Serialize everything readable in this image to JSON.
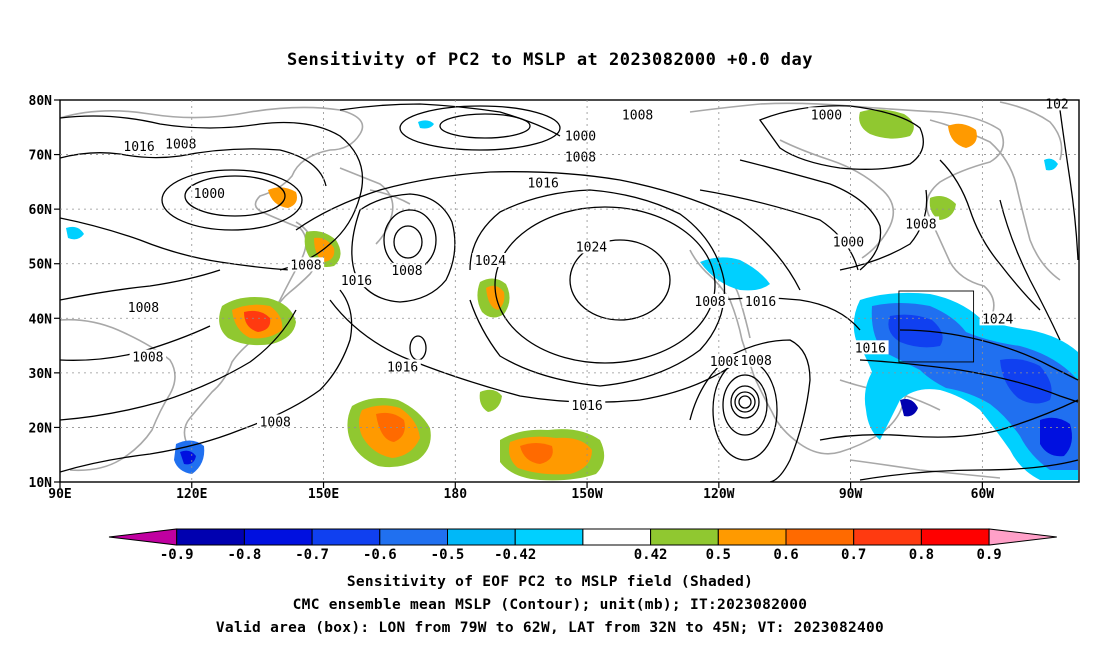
{
  "title": "Sensitivity of PC2 to MSLP at 2023082000 +0.0 day",
  "axes": {
    "lat_labels": [
      "80N",
      "70N",
      "60N",
      "50N",
      "40N",
      "30N",
      "20N",
      "10N"
    ],
    "lon_labels": [
      "90E",
      "120E",
      "150E",
      "180",
      "150W",
      "120W",
      "90W",
      "60W"
    ]
  },
  "contour_labels": [
    {
      "text": "1000",
      "lon": -151.5,
      "lat": 73.3
    },
    {
      "text": "1008",
      "lon": -138.5,
      "lat": 77.2
    },
    {
      "text": "1000",
      "lon": -95.5,
      "lat": 77.2
    },
    {
      "text": "102",
      "lon": -43.0,
      "lat": 79.2
    },
    {
      "text": "1016",
      "lon": 108.0,
      "lat": 71.4
    },
    {
      "text": "1008",
      "lon": 117.5,
      "lat": 71.8
    },
    {
      "text": "1008",
      "lon": -151.5,
      "lat": 69.5
    },
    {
      "text": "1000",
      "lon": 124.0,
      "lat": 62.8
    },
    {
      "text": "1016",
      "lon": -160.0,
      "lat": 64.7
    },
    {
      "text": "1024",
      "lon": -149.0,
      "lat": 53.0
    },
    {
      "text": "1024",
      "lon": -172.0,
      "lat": 50.5
    },
    {
      "text": "1008",
      "lon": 146.0,
      "lat": 49.7
    },
    {
      "text": "1016",
      "lon": 157.5,
      "lat": 46.8
    },
    {
      "text": "1008",
      "lon": 169.0,
      "lat": 48.7
    },
    {
      "text": "1000",
      "lon": -90.5,
      "lat": 53.9
    },
    {
      "text": "1008",
      "lon": -74.0,
      "lat": 57.2
    },
    {
      "text": "1008",
      "lon": 109.0,
      "lat": 41.9
    },
    {
      "text": "1008",
      "lon": -122.0,
      "lat": 43.0
    },
    {
      "text": "1016",
      "lon": -110.5,
      "lat": 43.0
    },
    {
      "text": "1024",
      "lon": -56.5,
      "lat": 39.8
    },
    {
      "text": "1016",
      "lon": -85.5,
      "lat": 34.5
    },
    {
      "text": "1008",
      "lon": 110.0,
      "lat": 32.8
    },
    {
      "text": "1016",
      "lon": 168.0,
      "lat": 31.0
    },
    {
      "text": "1008",
      "lon": -118.5,
      "lat": 32.0
    },
    {
      "text": "1008",
      "lon": -111.5,
      "lat": 32.2
    },
    {
      "text": "1008",
      "lon": 139.0,
      "lat": 20.9
    },
    {
      "text": "1016",
      "lon": -150.0,
      "lat": 23.9
    }
  ],
  "valid_box": {
    "lon_west": -79,
    "lon_east": -62,
    "lat_south": 32,
    "lat_north": 45
  },
  "colorbar": {
    "labels": [
      "-0.9",
      "-0.8",
      "-0.7",
      "-0.6",
      "-0.5",
      "-0.42",
      "0.42",
      "0.5",
      "0.6",
      "0.7",
      "0.8",
      "0.9"
    ],
    "colors": [
      "#c000a0",
      "#0000b0",
      "#0010e0",
      "#1040f0",
      "#2070f0",
      "#00b8f8",
      "#00d0ff",
      "#ffffff",
      "#90c830",
      "#ff9a00",
      "#ff6a00",
      "#ff3a10",
      "#ff0000",
      "#ffa0c8"
    ]
  },
  "footer": {
    "line1": "Sensitivity of EOF PC2 to MSLP field (Shaded)",
    "line2": "CMC ensemble mean MSLP (Contour); unit(mb); IT:2023082000",
    "line3": "Valid area (box): LON from 79W to 62W, LAT from 32N to 45N; VT: 2023082400"
  }
}
